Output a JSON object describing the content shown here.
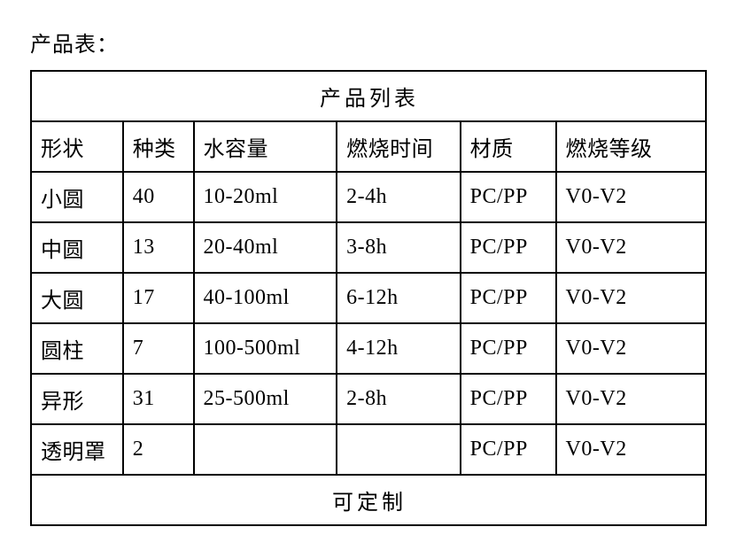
{
  "heading": "产品表：",
  "table": {
    "title": "产品列表",
    "footer": "可定制",
    "columns": [
      {
        "key": "shape",
        "label": "形状",
        "class": "col-shape"
      },
      {
        "key": "kind",
        "label": "种类",
        "class": "col-kind"
      },
      {
        "key": "capacity",
        "label": "水容量",
        "class": "col-capacity"
      },
      {
        "key": "burn_time",
        "label": "燃烧时间",
        "class": "col-burn"
      },
      {
        "key": "material",
        "label": "材质",
        "class": "col-material"
      },
      {
        "key": "grade",
        "label": "燃烧等级",
        "class": "col-grade"
      }
    ],
    "rows": [
      {
        "shape": "小圆",
        "kind": "40",
        "capacity": "10-20ml",
        "burn_time": "2-4h",
        "material": "PC/PP",
        "grade": "V0-V2"
      },
      {
        "shape": "中圆",
        "kind": "13",
        "capacity": "20-40ml",
        "burn_time": "3-8h",
        "material": "PC/PP",
        "grade": "V0-V2"
      },
      {
        "shape": "大圆",
        "kind": "17",
        "capacity": "40-100ml",
        "burn_time": "6-12h",
        "material": "PC/PP",
        "grade": "V0-V2"
      },
      {
        "shape": "圆柱",
        "kind": "7",
        "capacity": "100-500ml",
        "burn_time": "4-12h",
        "material": "PC/PP",
        "grade": "V0-V2"
      },
      {
        "shape": "异形",
        "kind": "31",
        "capacity": "25-500ml",
        "burn_time": "2-8h",
        "material": "PC/PP",
        "grade": "V0-V2"
      },
      {
        "shape": "透明罩",
        "kind": "2",
        "capacity": "",
        "burn_time": "",
        "material": "PC/PP",
        "grade": "V0-V2"
      }
    ],
    "border_color": "#000000",
    "text_color": "#000000",
    "background_color": "#ffffff",
    "font_size": 24
  }
}
